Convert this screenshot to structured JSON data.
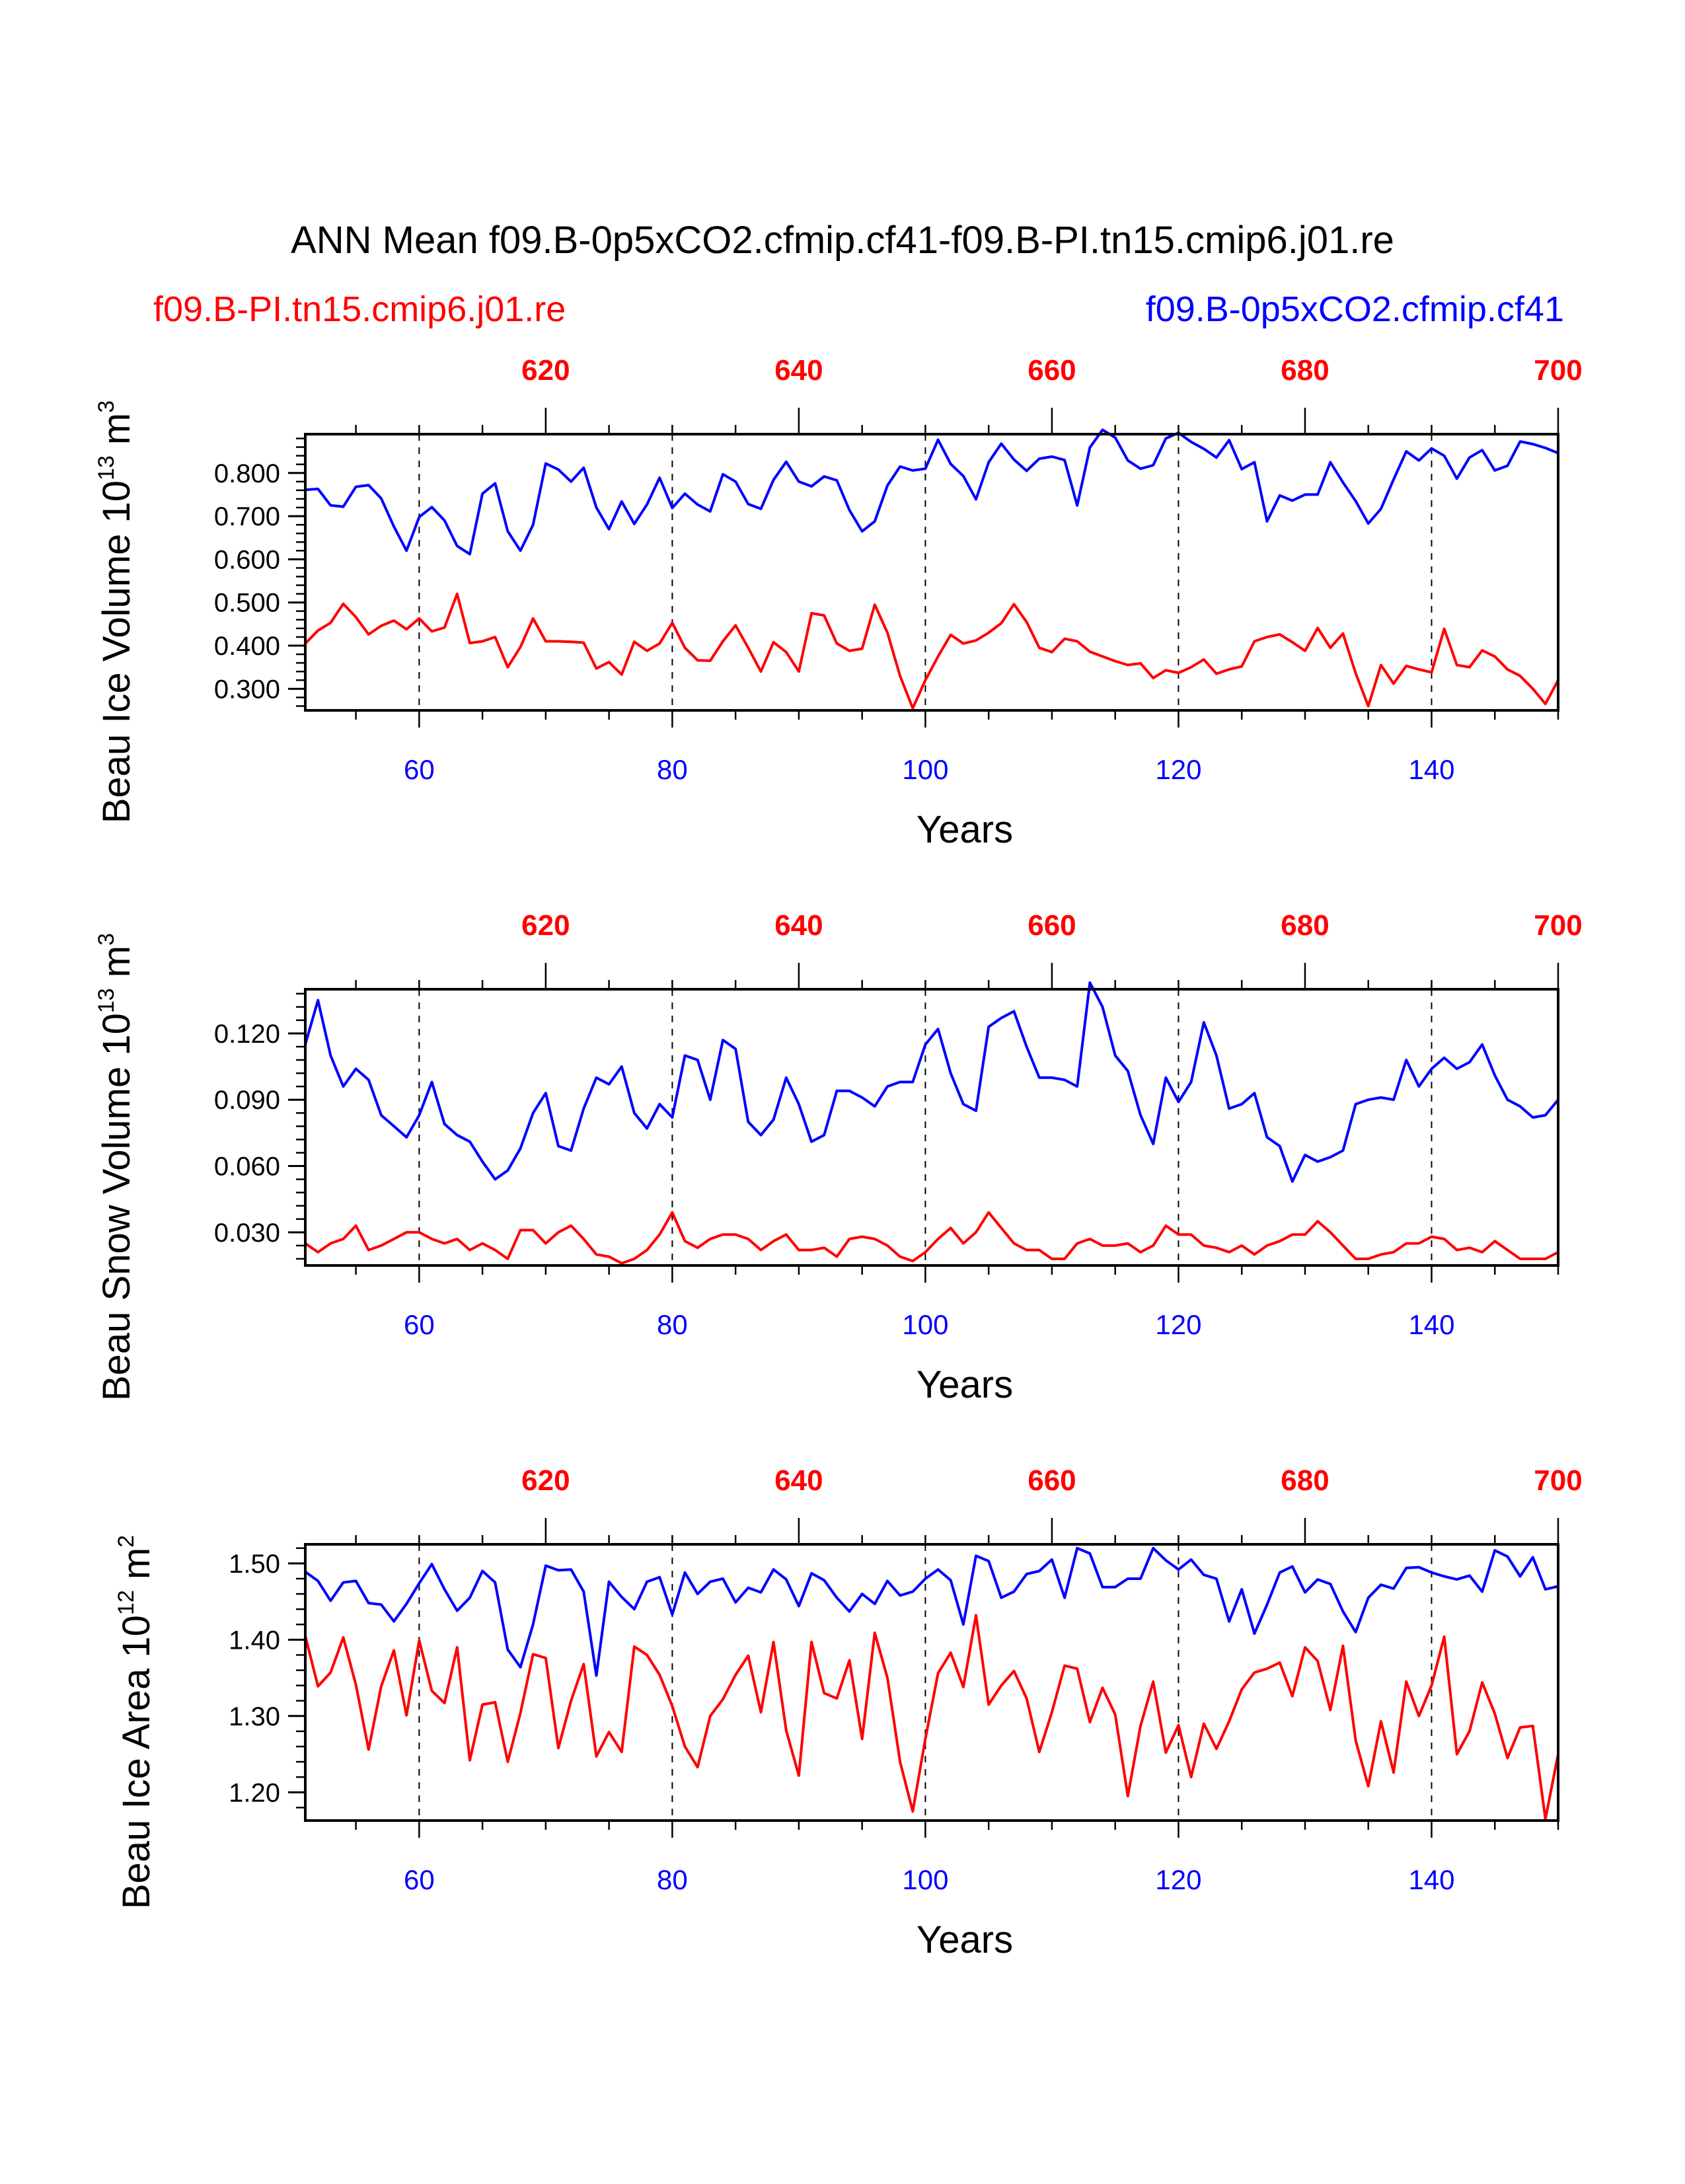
{
  "title": "ANN Mean f09.B-0p5xCO2.cfmip.cf41-f09.B-PI.tn15.cmip6.j01.re",
  "subtitle_left": "f09.B-PI.tn15.cmip6.j01.re",
  "subtitle_right": "f09.B-0p5xCO2.cfmip.cf41",
  "colors": {
    "control": "#ff0000",
    "experiment": "#0000ff",
    "axis": "#000000"
  },
  "chart_data": [
    {
      "type": "line",
      "ylabel_main": "Beau Ice Volume 10",
      "ylabel_exp": "13",
      "ylabel_unit": " m",
      "ylabel_unit_exp": "3",
      "xlabel": "Years",
      "xlim": [
        51,
        150
      ],
      "ylim": [
        0.25,
        0.89
      ],
      "yticks": [
        "0.300",
        "0.400",
        "0.500",
        "0.600",
        "0.700",
        "0.800"
      ],
      "x_ticks_bottom": [
        "60",
        "80",
        "100",
        "120",
        "140"
      ],
      "x_ticks_top": [
        "620",
        "640",
        "660",
        "680",
        "700"
      ],
      "series": [
        {
          "name": "f09.B-0p5xCO2.cfmip.cf41",
          "color": "#0000ff",
          "values": [
            0.761,
            0.763,
            0.725,
            0.722,
            0.768,
            0.772,
            0.741,
            0.676,
            0.62,
            0.698,
            0.721,
            0.69,
            0.631,
            0.612,
            0.752,
            0.776,
            0.665,
            0.62,
            0.68,
            0.822,
            0.808,
            0.78,
            0.812,
            0.72,
            0.67,
            0.734,
            0.682,
            0.727,
            0.789,
            0.719,
            0.752,
            0.727,
            0.711,
            0.797,
            0.78,
            0.728,
            0.717,
            0.784,
            0.826,
            0.78,
            0.769,
            0.792,
            0.783,
            0.714,
            0.665,
            0.688,
            0.771,
            0.815,
            0.806,
            0.81,
            0.877,
            0.821,
            0.793,
            0.739,
            0.825,
            0.868,
            0.831,
            0.805,
            0.833,
            0.838,
            0.83,
            0.725,
            0.859,
            0.9,
            0.882,
            0.829,
            0.81,
            0.818,
            0.88,
            0.893,
            0.872,
            0.856,
            0.836,
            0.876,
            0.809,
            0.825,
            0.688,
            0.748,
            0.736,
            0.75,
            0.75,
            0.825,
            0.778,
            0.735,
            0.683,
            0.717,
            0.785,
            0.85,
            0.829,
            0.857,
            0.84,
            0.787,
            0.836,
            0.853,
            0.806,
            0.817,
            0.873,
            0.867,
            0.858,
            0.846
          ]
        },
        {
          "name": "f09.B-PI.tn15.cmip6.j01.re",
          "color": "#ff0000",
          "values": [
            0.405,
            0.435,
            0.453,
            0.497,
            0.466,
            0.426,
            0.446,
            0.458,
            0.438,
            0.463,
            0.433,
            0.442,
            0.52,
            0.406,
            0.41,
            0.42,
            0.35,
            0.397,
            0.463,
            0.41,
            0.41,
            0.409,
            0.407,
            0.347,
            0.362,
            0.333,
            0.409,
            0.388,
            0.405,
            0.453,
            0.395,
            0.366,
            0.365,
            0.41,
            0.447,
            0.395,
            0.34,
            0.408,
            0.385,
            0.34,
            0.475,
            0.47,
            0.405,
            0.388,
            0.393,
            0.495,
            0.43,
            0.33,
            0.255,
            0.32,
            0.375,
            0.425,
            0.405,
            0.412,
            0.43,
            0.452,
            0.496,
            0.455,
            0.395,
            0.385,
            0.416,
            0.41,
            0.386,
            0.375,
            0.364,
            0.355,
            0.359,
            0.325,
            0.343,
            0.337,
            0.35,
            0.368,
            0.335,
            0.345,
            0.352,
            0.41,
            0.42,
            0.426,
            0.408,
            0.388,
            0.441,
            0.395,
            0.428,
            0.336,
            0.26,
            0.355,
            0.312,
            0.353,
            0.345,
            0.338,
            0.439,
            0.355,
            0.35,
            0.389,
            0.375,
            0.345,
            0.33,
            0.3,
            0.265,
            0.32
          ]
        }
      ]
    },
    {
      "type": "line",
      "ylabel_main": "Beau Snow Volume 10",
      "ylabel_exp": "13",
      "ylabel_unit": " m",
      "ylabel_unit_exp": "3",
      "xlabel": "Years",
      "xlim": [
        51,
        150
      ],
      "ylim": [
        0.015,
        0.14
      ],
      "yticks": [
        "0.030",
        "0.060",
        "0.090",
        "0.120"
      ],
      "x_ticks_bottom": [
        "60",
        "80",
        "100",
        "120",
        "140"
      ],
      "x_ticks_top": [
        "620",
        "640",
        "660",
        "680",
        "700"
      ],
      "series": [
        {
          "name": "f09.B-0p5xCO2.cfmip.cf41",
          "color": "#0000ff",
          "values": [
            0.115,
            0.135,
            0.11,
            0.096,
            0.104,
            0.099,
            0.083,
            0.078,
            0.073,
            0.083,
            0.098,
            0.079,
            0.074,
            0.071,
            0.062,
            0.054,
            0.058,
            0.068,
            0.084,
            0.093,
            0.069,
            0.067,
            0.086,
            0.1,
            0.097,
            0.105,
            0.084,
            0.077,
            0.088,
            0.082,
            0.11,
            0.108,
            0.09,
            0.117,
            0.113,
            0.08,
            0.074,
            0.081,
            0.1,
            0.088,
            0.071,
            0.074,
            0.094,
            0.094,
            0.091,
            0.087,
            0.096,
            0.098,
            0.098,
            0.115,
            0.122,
            0.102,
            0.088,
            0.085,
            0.123,
            0.127,
            0.13,
            0.114,
            0.1,
            0.1,
            0.099,
            0.096,
            0.143,
            0.132,
            0.11,
            0.103,
            0.083,
            0.07,
            0.1,
            0.089,
            0.098,
            0.125,
            0.11,
            0.086,
            0.088,
            0.093,
            0.073,
            0.069,
            0.053,
            0.065,
            0.062,
            0.064,
            0.067,
            0.088,
            0.09,
            0.091,
            0.09,
            0.108,
            0.096,
            0.104,
            0.109,
            0.104,
            0.107,
            0.115,
            0.101,
            0.09,
            0.087,
            0.082,
            0.083,
            0.09
          ]
        },
        {
          "name": "f09.B-PI.tn15.cmip6.j01.re",
          "color": "#ff0000",
          "values": [
            0.025,
            0.021,
            0.025,
            0.027,
            0.033,
            0.022,
            0.024,
            0.027,
            0.03,
            0.03,
            0.027,
            0.025,
            0.027,
            0.022,
            0.025,
            0.022,
            0.018,
            0.031,
            0.031,
            0.025,
            0.03,
            0.033,
            0.027,
            0.02,
            0.019,
            0.016,
            0.018,
            0.022,
            0.029,
            0.039,
            0.026,
            0.023,
            0.027,
            0.029,
            0.029,
            0.027,
            0.022,
            0.026,
            0.029,
            0.022,
            0.022,
            0.023,
            0.019,
            0.027,
            0.028,
            0.027,
            0.024,
            0.019,
            0.017,
            0.021,
            0.027,
            0.032,
            0.025,
            0.03,
            0.039,
            0.032,
            0.025,
            0.022,
            0.022,
            0.018,
            0.018,
            0.025,
            0.027,
            0.024,
            0.024,
            0.025,
            0.021,
            0.024,
            0.033,
            0.029,
            0.029,
            0.024,
            0.023,
            0.021,
            0.024,
            0.02,
            0.024,
            0.026,
            0.029,
            0.029,
            0.035,
            0.03,
            0.024,
            0.018,
            0.018,
            0.02,
            0.021,
            0.025,
            0.025,
            0.028,
            0.027,
            0.022,
            0.023,
            0.021,
            0.026,
            0.022,
            0.018,
            0.018,
            0.018,
            0.021
          ]
        }
      ]
    },
    {
      "type": "line",
      "ylabel_main": "Beau Ice Area 10",
      "ylabel_exp": "12",
      "ylabel_unit": " m",
      "ylabel_unit_exp": "2",
      "xlabel": "Years",
      "xlim": [
        51,
        150
      ],
      "ylim": [
        1.163,
        1.525
      ],
      "yticks": [
        "1.20",
        "1.30",
        "1.40",
        "1.50"
      ],
      "x_ticks_bottom": [
        "60",
        "80",
        "100",
        "120",
        "140"
      ],
      "x_ticks_top": [
        "620",
        "640",
        "660",
        "680",
        "700"
      ],
      "series": [
        {
          "name": "f09.B-0p5xCO2.cfmip.cf41",
          "color": "#0000ff",
          "values": [
            1.489,
            1.477,
            1.451,
            1.475,
            1.477,
            1.448,
            1.446,
            1.424,
            1.447,
            1.474,
            1.499,
            1.466,
            1.438,
            1.455,
            1.49,
            1.475,
            1.387,
            1.364,
            1.42,
            1.497,
            1.491,
            1.492,
            1.463,
            1.353,
            1.476,
            1.456,
            1.44,
            1.476,
            1.482,
            1.433,
            1.488,
            1.46,
            1.476,
            1.48,
            1.449,
            1.468,
            1.462,
            1.492,
            1.479,
            1.444,
            1.487,
            1.478,
            1.455,
            1.437,
            1.46,
            1.447,
            1.477,
            1.458,
            1.463,
            1.48,
            1.492,
            1.478,
            1.42,
            1.51,
            1.503,
            1.455,
            1.463,
            1.486,
            1.49,
            1.505,
            1.455,
            1.52,
            1.513,
            1.469,
            1.469,
            1.48,
            1.48,
            1.52,
            1.504,
            1.492,
            1.505,
            1.485,
            1.48,
            1.424,
            1.466,
            1.408,
            1.446,
            1.488,
            1.496,
            1.462,
            1.479,
            1.473,
            1.437,
            1.41,
            1.455,
            1.472,
            1.467,
            1.494,
            1.495,
            1.488,
            1.483,
            1.479,
            1.484,
            1.463,
            1.517,
            1.509,
            1.483,
            1.508,
            1.466,
            1.47
          ]
        },
        {
          "name": "f09.B-PI.tn15.cmip6.j01.re",
          "color": "#ff0000",
          "values": [
            1.405,
            1.339,
            1.357,
            1.403,
            1.341,
            1.256,
            1.339,
            1.386,
            1.301,
            1.399,
            1.333,
            1.317,
            1.39,
            1.242,
            1.315,
            1.318,
            1.24,
            1.304,
            1.381,
            1.376,
            1.258,
            1.32,
            1.368,
            1.247,
            1.279,
            1.253,
            1.391,
            1.38,
            1.354,
            1.313,
            1.26,
            1.233,
            1.3,
            1.322,
            1.354,
            1.379,
            1.305,
            1.397,
            1.281,
            1.222,
            1.397,
            1.33,
            1.323,
            1.373,
            1.27,
            1.409,
            1.35,
            1.24,
            1.175,
            1.27,
            1.356,
            1.383,
            1.338,
            1.432,
            1.315,
            1.34,
            1.359,
            1.323,
            1.253,
            1.305,
            1.366,
            1.362,
            1.292,
            1.337,
            1.302,
            1.195,
            1.287,
            1.345,
            1.252,
            1.288,
            1.22,
            1.29,
            1.257,
            1.293,
            1.335,
            1.357,
            1.362,
            1.37,
            1.326,
            1.39,
            1.372,
            1.308,
            1.392,
            1.268,
            1.208,
            1.293,
            1.226,
            1.345,
            1.3,
            1.34,
            1.404,
            1.25,
            1.28,
            1.344,
            1.303,
            1.245,
            1.285,
            1.287,
            1.165,
            1.25
          ]
        }
      ]
    }
  ]
}
